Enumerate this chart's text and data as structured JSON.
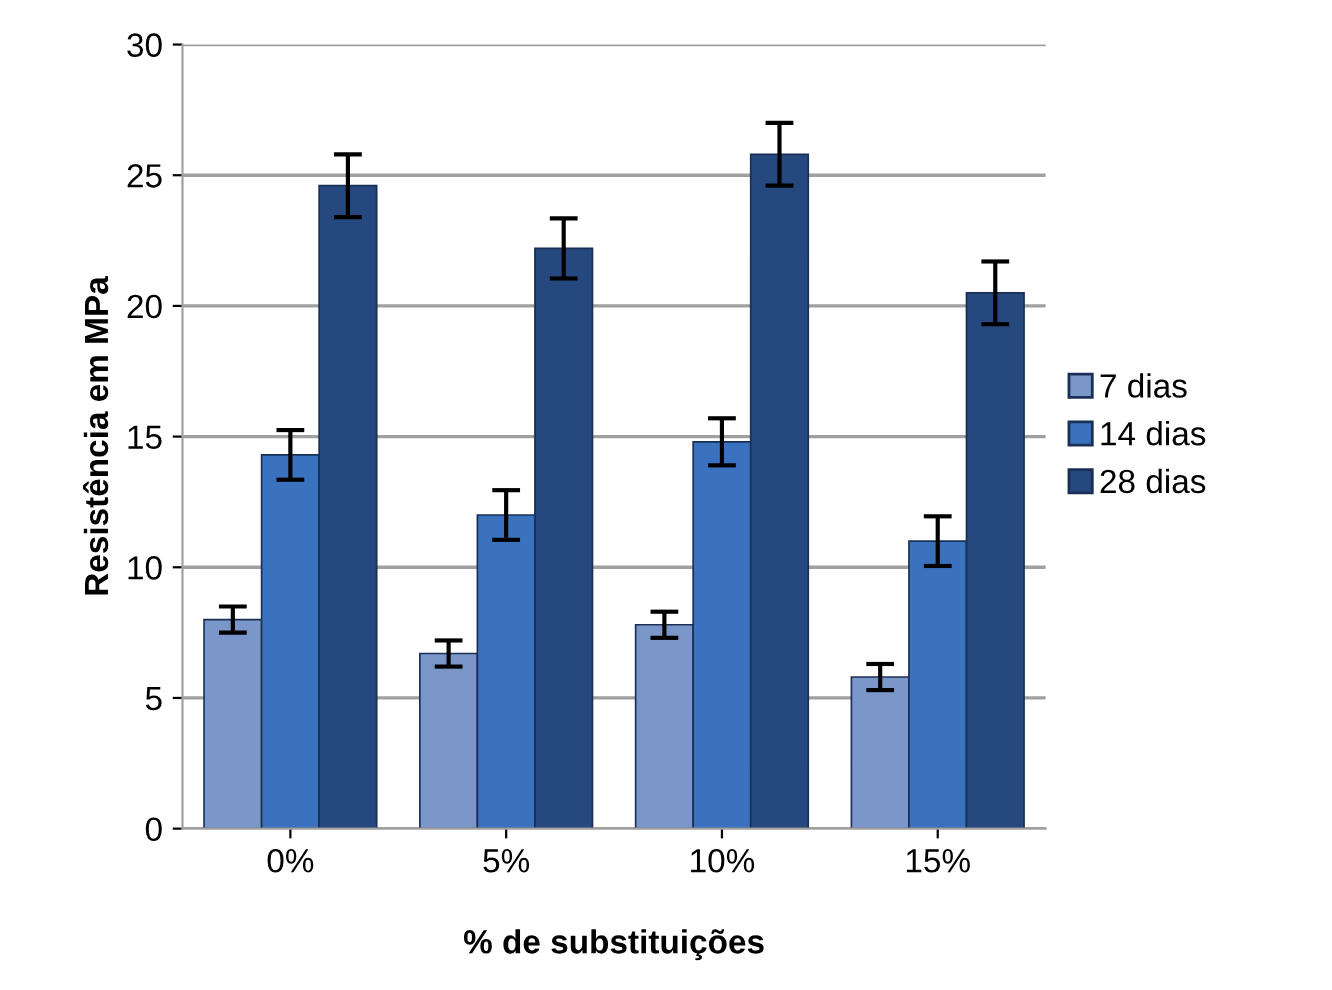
{
  "chart_data": {
    "type": "bar",
    "xlabel": "% de substituições",
    "ylabel": "Resistência em MPa",
    "categories": [
      "0%",
      "5%",
      "10%",
      "15%"
    ],
    "series": [
      {
        "name": "7 dias",
        "color": "#7b97c9",
        "values": [
          8.0,
          6.7,
          7.8,
          5.8
        ],
        "errors": [
          0.5,
          0.5,
          0.5,
          0.5
        ]
      },
      {
        "name": "14 dias",
        "color": "#3a72bf",
        "values": [
          14.3,
          12.0,
          14.8,
          11.0
        ],
        "errors": [
          0.95,
          0.95,
          0.9,
          0.95
        ]
      },
      {
        "name": "28 dias",
        "color": "#25497f",
        "values": [
          24.6,
          22.2,
          25.8,
          20.5
        ],
        "errors": [
          1.2,
          1.15,
          1.2,
          1.2
        ]
      }
    ],
    "ylim": [
      0,
      30
    ],
    "yticks": [
      0,
      5,
      10,
      15,
      20,
      25,
      30
    ],
    "grid": "y",
    "legend": "right"
  }
}
